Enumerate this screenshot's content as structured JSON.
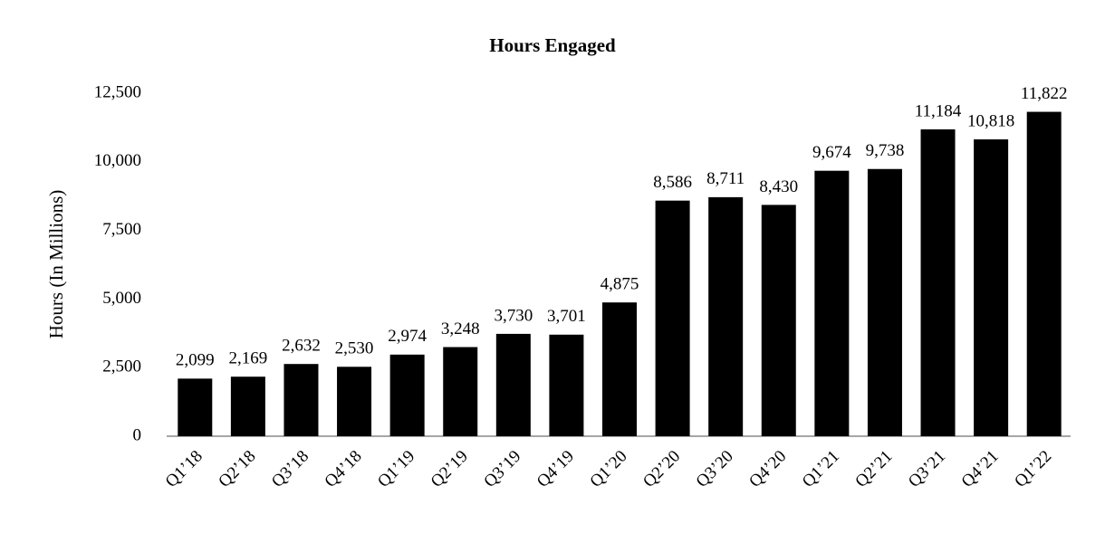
{
  "chart_data": {
    "type": "bar",
    "title": "Hours Engaged",
    "y_label": "Hours (In Millions)",
    "categories": [
      "Q1’18",
      "Q2’18",
      "Q3’18",
      "Q4’18",
      "Q1’19",
      "Q2’19",
      "Q3’19",
      "Q4’19",
      "Q1’20",
      "Q2’20",
      "Q3’20",
      "Q4’20",
      "Q1’21",
      "Q2’21",
      "Q3’21",
      "Q4’21",
      "Q1’22"
    ],
    "values": [
      2099,
      2169,
      2632,
      2530,
      2974,
      3248,
      3730,
      3701,
      4875,
      8586,
      8711,
      8430,
      9674,
      9738,
      11184,
      10818,
      11822
    ],
    "value_labels": [
      "2,099",
      "2,169",
      "2,632",
      "2,530",
      "2,974",
      "3,248",
      "3,730",
      "3,701",
      "4,875",
      "8,586",
      "8,711",
      "8,430",
      "9,674",
      "9,738",
      "11,184",
      "10,818",
      "11,822"
    ],
    "color": "#000000",
    "ylim": [
      0,
      12500
    ],
    "yticks": [
      0,
      {
        "value": 2500,
        "label": "2,500"
      },
      {
        "value": 5000,
        "label": "5,000"
      },
      {
        "value": 7500,
        "label": "7,500"
      },
      {
        "value": 10000,
        "label": "10,000"
      },
      {
        "value": 12500,
        "label": "12,500"
      }
    ],
    "grid": false
  }
}
